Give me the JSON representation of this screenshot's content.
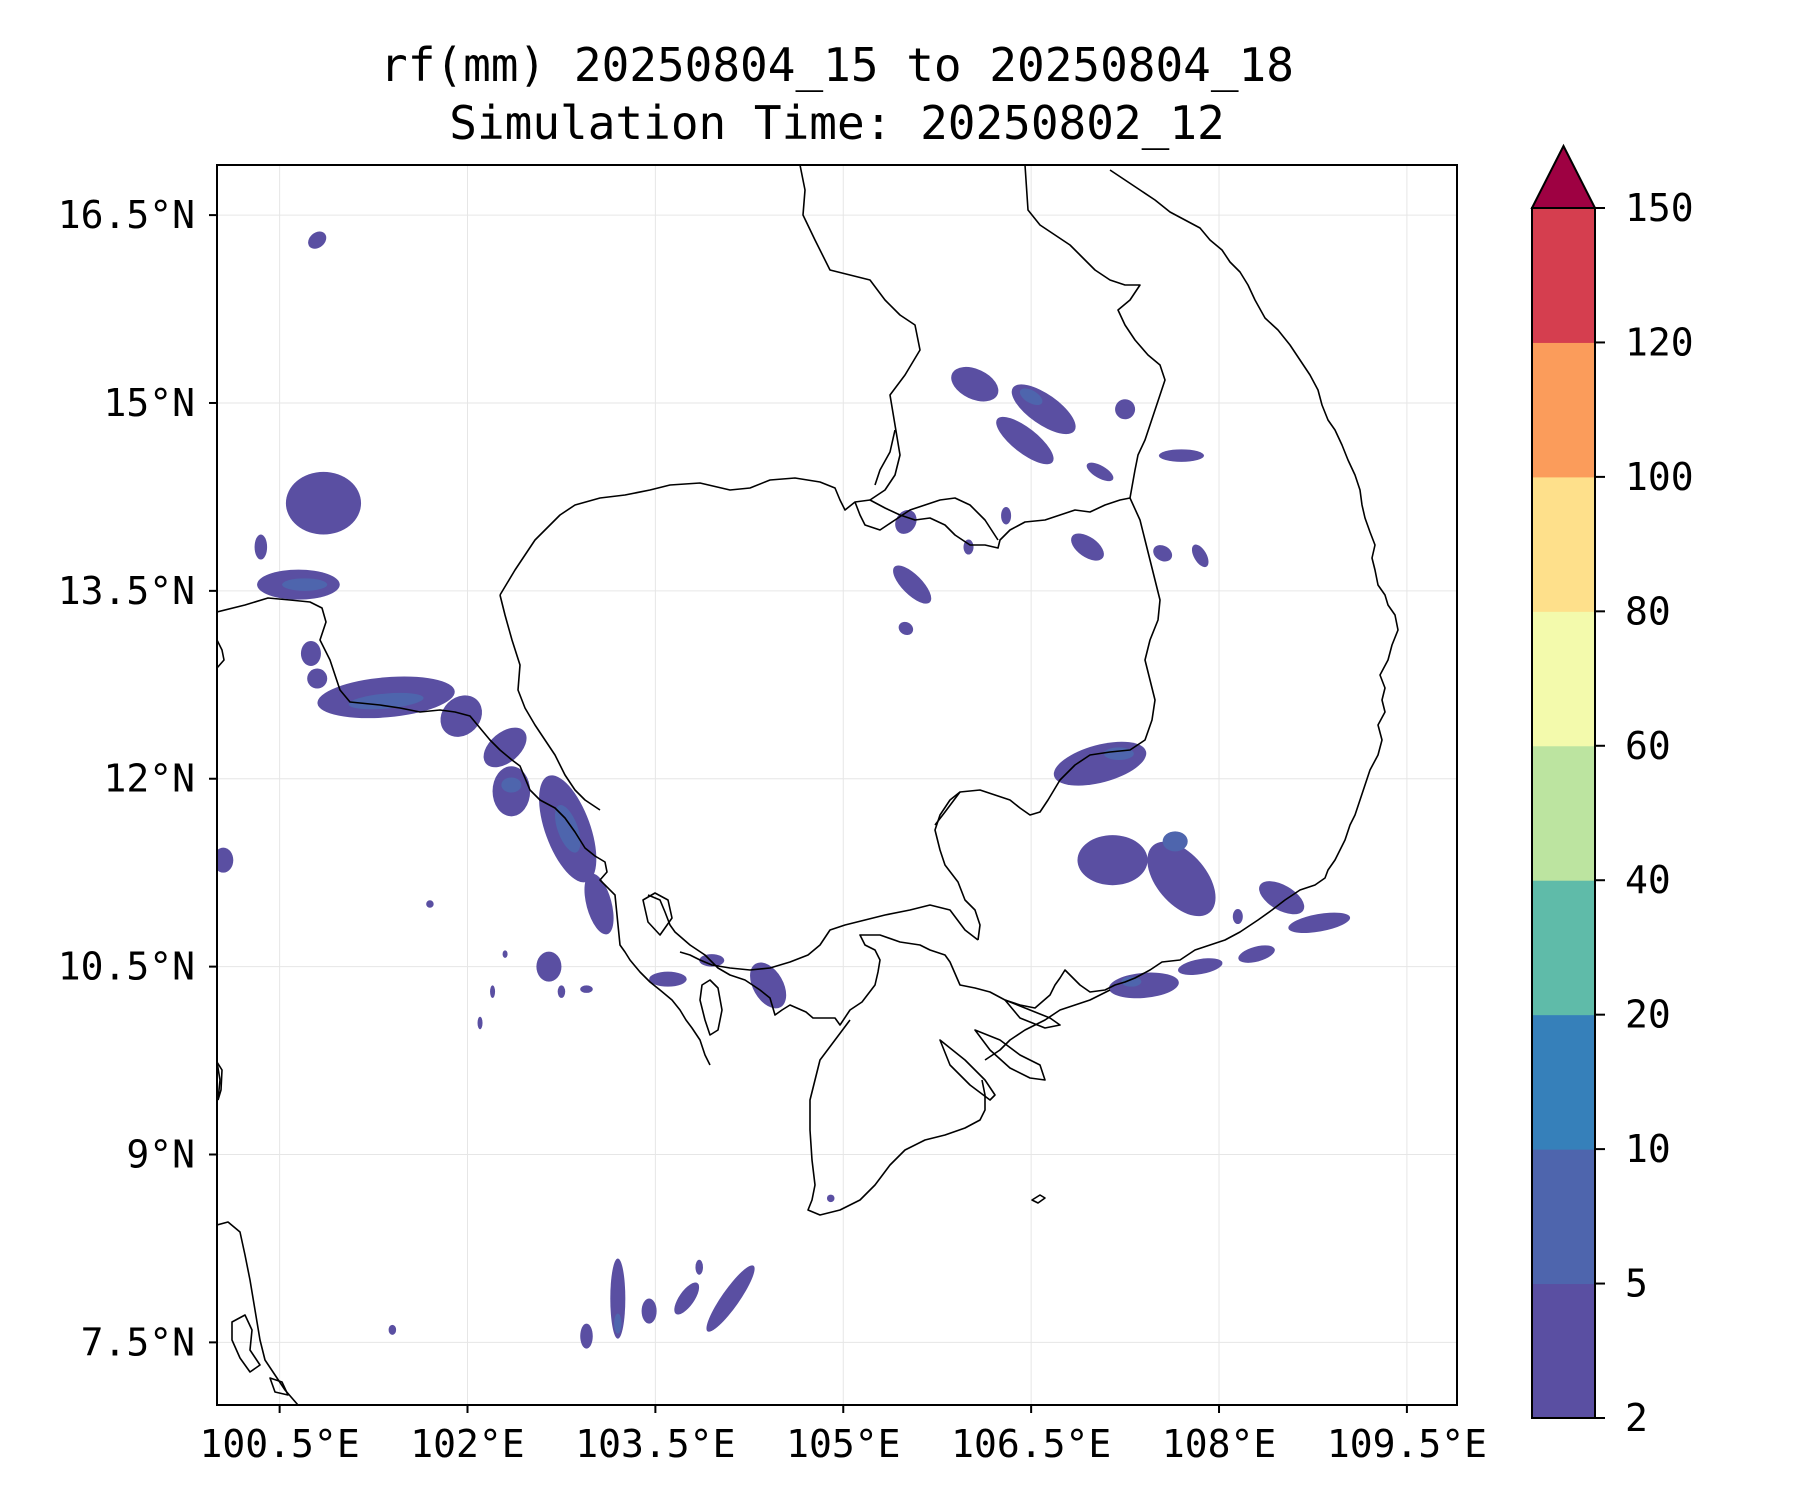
{
  "title": {
    "line1": "rf(mm) 20250804_15 to 20250804_18",
    "line2": "Simulation Time: 20250802_12"
  },
  "map": {
    "lon_range": [
      100.0,
      109.9
    ],
    "lat_range": [
      7.0,
      16.9
    ],
    "lon_ticks": [
      {
        "value": 100.5,
        "label": "100.5°E"
      },
      {
        "value": 102.0,
        "label": "102°E"
      },
      {
        "value": 103.5,
        "label": "103.5°E"
      },
      {
        "value": 105.0,
        "label": "105°E"
      },
      {
        "value": 106.5,
        "label": "106.5°E"
      },
      {
        "value": 108.0,
        "label": "108°E"
      },
      {
        "value": 109.5,
        "label": "109.5°E"
      }
    ],
    "lat_ticks": [
      {
        "value": 16.5,
        "label": "16.5°N"
      },
      {
        "value": 15.0,
        "label": "15°N"
      },
      {
        "value": 13.5,
        "label": "13.5°N"
      },
      {
        "value": 12.0,
        "label": "12°N"
      },
      {
        "value": 10.5,
        "label": "10.5°N"
      },
      {
        "value": 9.0,
        "label": "9°N"
      },
      {
        "value": 7.5,
        "label": "7.5°N"
      }
    ],
    "gridlines": true
  },
  "colorbar": {
    "levels": [
      "2",
      "5",
      "10",
      "20",
      "40",
      "60",
      "80",
      "100",
      "120",
      "150"
    ],
    "colors": [
      "#5a4fa2",
      "#4e65ad",
      "#3680ba",
      "#5fbba9",
      "#bce4a0",
      "#f3faac",
      "#fee08b",
      "#fb9c5b",
      "#d53e4f"
    ],
    "extend_color": "#9e0142",
    "extend": "max"
  },
  "rain_areas": [
    {
      "lon": 100.8,
      "lat": 16.3,
      "rlon": 0.08,
      "rlat": 0.06,
      "angle": -40,
      "level": 0
    },
    {
      "lon": 100.85,
      "lat": 14.2,
      "rlon": 0.3,
      "rlat": 0.25,
      "angle": 0,
      "level": 0
    },
    {
      "lon": 100.35,
      "lat": 13.85,
      "rlon": 0.05,
      "rlat": 0.1,
      "angle": 0,
      "level": 0
    },
    {
      "lon": 100.65,
      "lat": 13.55,
      "rlon": 0.33,
      "rlat": 0.12,
      "angle": 0,
      "level": 0
    },
    {
      "lon": 100.7,
      "lat": 13.55,
      "rlon": 0.18,
      "rlat": 0.05,
      "angle": 0,
      "level": 1
    },
    {
      "lon": 100.75,
      "lat": 13.0,
      "rlon": 0.08,
      "rlat": 0.1,
      "angle": 0,
      "level": 0
    },
    {
      "lon": 100.8,
      "lat": 12.8,
      "rlon": 0.08,
      "rlat": 0.08,
      "angle": 0,
      "level": 0
    },
    {
      "lon": 101.35,
      "lat": 12.65,
      "rlon": 0.55,
      "rlat": 0.16,
      "angle": -5,
      "level": 0
    },
    {
      "lon": 101.35,
      "lat": 12.62,
      "rlon": 0.3,
      "rlat": 0.06,
      "angle": -5,
      "level": 1
    },
    {
      "lon": 101.95,
      "lat": 12.5,
      "rlon": 0.18,
      "rlat": 0.15,
      "angle": -45,
      "level": 0
    },
    {
      "lon": 102.3,
      "lat": 12.25,
      "rlon": 0.2,
      "rlat": 0.12,
      "angle": -40,
      "level": 0
    },
    {
      "lon": 102.35,
      "lat": 11.9,
      "rlon": 0.15,
      "rlat": 0.2,
      "angle": 0,
      "level": 0
    },
    {
      "lon": 102.35,
      "lat": 11.95,
      "rlon": 0.08,
      "rlat": 0.06,
      "angle": 0,
      "level": 1
    },
    {
      "lon": 102.8,
      "lat": 11.6,
      "rlon": 0.18,
      "rlat": 0.45,
      "angle": -20,
      "level": 0
    },
    {
      "lon": 102.8,
      "lat": 11.6,
      "rlon": 0.08,
      "rlat": 0.2,
      "angle": -20,
      "level": 1
    },
    {
      "lon": 103.05,
      "lat": 11.0,
      "rlon": 0.1,
      "rlat": 0.25,
      "angle": -15,
      "level": 0
    },
    {
      "lon": 102.65,
      "lat": 10.5,
      "rlon": 0.1,
      "rlat": 0.12,
      "angle": 0,
      "level": 0
    },
    {
      "lon": 102.75,
      "lat": 10.3,
      "rlon": 0.03,
      "rlat": 0.05,
      "angle": 0,
      "level": 0
    },
    {
      "lon": 102.95,
      "lat": 10.32,
      "rlon": 0.05,
      "rlat": 0.03,
      "angle": 0,
      "level": 0
    },
    {
      "lon": 101.7,
      "lat": 11.0,
      "rlon": 0.03,
      "rlat": 0.03,
      "angle": 0,
      "level": 0
    },
    {
      "lon": 102.3,
      "lat": 10.6,
      "rlon": 0.02,
      "rlat": 0.03,
      "angle": 0,
      "level": 0
    },
    {
      "lon": 102.2,
      "lat": 10.3,
      "rlon": 0.02,
      "rlat": 0.05,
      "angle": 0,
      "level": 0
    },
    {
      "lon": 102.1,
      "lat": 10.05,
      "rlon": 0.02,
      "rlat": 0.05,
      "angle": 0,
      "level": 0
    },
    {
      "lon": 100.05,
      "lat": 11.35,
      "rlon": 0.08,
      "rlat": 0.1,
      "angle": 0,
      "level": 0
    },
    {
      "lon": 103.6,
      "lat": 10.4,
      "rlon": 0.15,
      "rlat": 0.06,
      "angle": 0,
      "level": 0
    },
    {
      "lon": 103.95,
      "lat": 10.55,
      "rlon": 0.1,
      "rlat": 0.05,
      "angle": 0,
      "level": 0
    },
    {
      "lon": 104.4,
      "lat": 10.35,
      "rlon": 0.12,
      "rlat": 0.2,
      "angle": -30,
      "level": 0
    },
    {
      "lon": 101.4,
      "lat": 7.6,
      "rlon": 0.03,
      "rlat": 0.04,
      "angle": 0,
      "level": 0
    },
    {
      "lon": 102.95,
      "lat": 7.55,
      "rlon": 0.05,
      "rlat": 0.1,
      "angle": 0,
      "level": 0
    },
    {
      "lon": 103.2,
      "lat": 7.85,
      "rlon": 0.06,
      "rlat": 0.32,
      "angle": 0,
      "level": 0
    },
    {
      "lon": 103.2,
      "lat": 7.65,
      "rlon": 0.03,
      "rlat": 0.08,
      "angle": 0,
      "level": 1
    },
    {
      "lon": 103.45,
      "lat": 7.75,
      "rlon": 0.06,
      "rlat": 0.1,
      "angle": 0,
      "level": 0
    },
    {
      "lon": 103.75,
      "lat": 7.85,
      "rlon": 0.06,
      "rlat": 0.15,
      "angle": 35,
      "level": 0
    },
    {
      "lon": 103.85,
      "lat": 8.1,
      "rlon": 0.03,
      "rlat": 0.06,
      "angle": 0,
      "level": 0
    },
    {
      "lon": 104.1,
      "lat": 7.85,
      "rlon": 0.07,
      "rlat": 0.32,
      "angle": 35,
      "level": 0
    },
    {
      "lon": 104.9,
      "lat": 8.65,
      "rlon": 0.03,
      "rlat": 0.03,
      "angle": 0,
      "level": 0
    },
    {
      "lon": 106.05,
      "lat": 15.15,
      "rlon": 0.2,
      "rlat": 0.12,
      "angle": 25,
      "level": 0
    },
    {
      "lon": 106.6,
      "lat": 14.95,
      "rlon": 0.3,
      "rlat": 0.12,
      "angle": 35,
      "level": 0
    },
    {
      "lon": 106.5,
      "lat": 15.05,
      "rlon": 0.1,
      "rlat": 0.05,
      "angle": 30,
      "level": 1
    },
    {
      "lon": 106.45,
      "lat": 14.7,
      "rlon": 0.28,
      "rlat": 0.1,
      "angle": 38,
      "level": 0
    },
    {
      "lon": 107.05,
      "lat": 14.45,
      "rlon": 0.12,
      "rlat": 0.05,
      "angle": 30,
      "level": 0
    },
    {
      "lon": 107.25,
      "lat": 14.95,
      "rlon": 0.08,
      "rlat": 0.08,
      "angle": 35,
      "level": 0
    },
    {
      "lon": 107.7,
      "lat": 14.58,
      "rlon": 0.18,
      "rlat": 0.05,
      "angle": 0,
      "level": 0
    },
    {
      "lon": 106.95,
      "lat": 13.85,
      "rlon": 0.15,
      "rlat": 0.08,
      "angle": 35,
      "level": 0
    },
    {
      "lon": 107.55,
      "lat": 13.8,
      "rlon": 0.08,
      "rlat": 0.06,
      "angle": 30,
      "level": 0
    },
    {
      "lon": 107.85,
      "lat": 13.78,
      "rlon": 0.1,
      "rlat": 0.05,
      "angle": 60,
      "level": 0
    },
    {
      "lon": 105.5,
      "lat": 14.05,
      "rlon": 0.08,
      "rlat": 0.1,
      "angle": 30,
      "level": 0
    },
    {
      "lon": 105.55,
      "lat": 13.55,
      "rlon": 0.2,
      "rlat": 0.08,
      "angle": 45,
      "level": 0
    },
    {
      "lon": 105.5,
      "lat": 13.2,
      "rlon": 0.06,
      "rlat": 0.05,
      "angle": 30,
      "level": 0
    },
    {
      "lon": 106.0,
      "lat": 13.85,
      "rlon": 0.04,
      "rlat": 0.06,
      "angle": 0,
      "level": 0
    },
    {
      "lon": 106.3,
      "lat": 14.1,
      "rlon": 0.04,
      "rlat": 0.07,
      "angle": 0,
      "level": 0
    },
    {
      "lon": 107.05,
      "lat": 12.12,
      "rlon": 0.38,
      "rlat": 0.15,
      "angle": -15,
      "level": 0
    },
    {
      "lon": 107.2,
      "lat": 12.2,
      "rlon": 0.12,
      "rlat": 0.05,
      "angle": 0,
      "level": 1
    },
    {
      "lon": 107.15,
      "lat": 11.35,
      "rlon": 0.28,
      "rlat": 0.2,
      "angle": 0,
      "level": 0
    },
    {
      "lon": 107.7,
      "lat": 11.2,
      "rlon": 0.2,
      "rlat": 0.35,
      "angle": -40,
      "level": 0
    },
    {
      "lon": 107.65,
      "lat": 11.5,
      "rlon": 0.1,
      "rlat": 0.08,
      "angle": 0,
      "level": 1
    },
    {
      "lon": 108.5,
      "lat": 11.05,
      "rlon": 0.2,
      "rlat": 0.1,
      "angle": 30,
      "level": 0
    },
    {
      "lon": 108.8,
      "lat": 10.85,
      "rlon": 0.25,
      "rlat": 0.07,
      "angle": -10,
      "level": 0
    },
    {
      "lon": 108.15,
      "lat": 10.9,
      "rlon": 0.04,
      "rlat": 0.06,
      "angle": 0,
      "level": 0
    },
    {
      "lon": 108.3,
      "lat": 10.6,
      "rlon": 0.15,
      "rlat": 0.06,
      "angle": -15,
      "level": 0
    },
    {
      "lon": 107.85,
      "lat": 10.5,
      "rlon": 0.18,
      "rlat": 0.06,
      "angle": -10,
      "level": 0
    },
    {
      "lon": 107.4,
      "lat": 10.35,
      "rlon": 0.28,
      "rlat": 0.1,
      "angle": -5,
      "level": 0
    },
    {
      "lon": 107.3,
      "lat": 10.38,
      "rlon": 0.08,
      "rlat": 0.04,
      "angle": 0,
      "level": 1
    }
  ]
}
